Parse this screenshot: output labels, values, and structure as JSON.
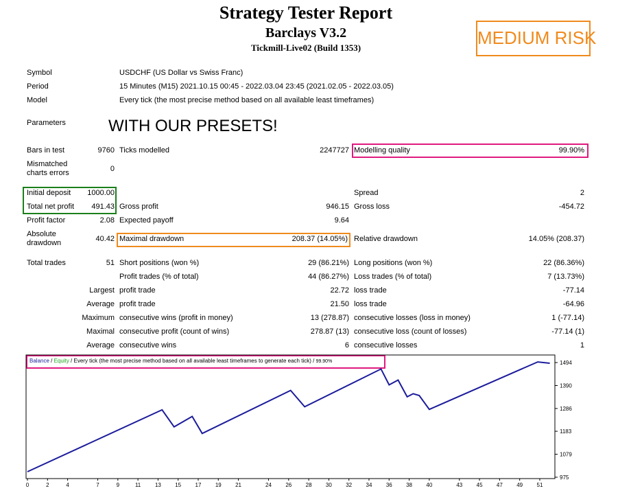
{
  "header": {
    "title": "Strategy Tester Report",
    "expert": "Barclays V3.2",
    "server": "Tickmill-Live02 (Build 1353)",
    "risk_label": "MEDIUM RISK",
    "presets_note": "WITH OUR PRESETS!"
  },
  "info": {
    "symbol_label": "Symbol",
    "symbol_value": "USDCHF (US Dollar vs Swiss Franc)",
    "period_label": "Period",
    "period_value": "15 Minutes (M15) 2021.10.15 00:45 - 2022.03.04 23:45 (2021.02.05 - 2022.03.05)",
    "model_label": "Model",
    "model_value": "Every tick (the most precise method based on all available least timeframes)",
    "parameters_label": "Parameters"
  },
  "stats": {
    "bars_label": "Bars in test",
    "bars_value": "9760",
    "ticks_label": "Ticks modelled",
    "ticks_value": "2247727",
    "quality_label": "Modelling quality",
    "quality_value": "99.90%",
    "mismatch_label1": "Mismatched",
    "mismatch_label2": "charts errors",
    "mismatch_value": "0",
    "deposit_label": "Initial deposit",
    "deposit_value": "1000.00",
    "spread_label": "Spread",
    "spread_value": "2",
    "netprofit_label": "Total net profit",
    "netprofit_value": "491.43",
    "grossprofit_label": "Gross profit",
    "grossprofit_value": "946.15",
    "grossloss_label": "Gross loss",
    "grossloss_value": "-454.72",
    "pf_label": "Profit factor",
    "pf_value": "2.08",
    "payoff_label": "Expected payoff",
    "payoff_value": "9.64",
    "absdd_label1": "Absolute",
    "absdd_label2": "drawdown",
    "absdd_value": "40.42",
    "maxdd_label": "Maximal drawdown",
    "maxdd_value": "208.37 (14.05%)",
    "reldd_label": "Relative drawdown",
    "reldd_value": "14.05% (208.37)",
    "trades_label": "Total trades",
    "trades_value": "51",
    "short_label": "Short positions (won %)",
    "short_value": "29 (86.21%)",
    "long_label": "Long positions (won %)",
    "long_value": "22 (86.36%)",
    "profit_trades_label": "Profit trades (% of total)",
    "profit_trades_value": "44 (86.27%)",
    "loss_trades_label": "Loss trades (% of total)",
    "loss_trades_value": "7 (13.73%)",
    "largest_label": "Largest",
    "largest_profit_label": "profit trade",
    "largest_profit_value": "22.72",
    "largest_loss_label": "loss trade",
    "largest_loss_value": "-77.14",
    "average_label": "Average",
    "average_profit_label": "profit trade",
    "average_profit_value": "21.50",
    "average_loss_label": "loss trade",
    "average_loss_value": "-64.96",
    "maximum_label": "Maximum",
    "max_wins_label": "consecutive wins (profit in money)",
    "max_wins_value": "13 (278.87)",
    "max_losses_label": "consecutive losses (loss in money)",
    "max_losses_value": "1 (-77.14)",
    "maximal_label": "Maximal",
    "maximal_profit_label": "consecutive profit (count of wins)",
    "maximal_profit_value": "278.87 (13)",
    "maximal_loss_label": "consecutive loss (count of losses)",
    "maximal_loss_value": "-77.14 (1)",
    "avg_consec_label": "Average",
    "avg_wins_label": "consecutive wins",
    "avg_wins_value": "6",
    "avg_losses_label": "consecutive losses",
    "avg_losses_value": "1"
  },
  "chart_legend": {
    "balance": "Balance",
    "sep1": " / ",
    "equity": "Equity",
    "sep2": " / Every tick (the most precise method based on all available least timeframes to generate each tick)",
    "sep3": " / ",
    "quality": "99.90%"
  },
  "colors": {
    "balance_line": "#1c1c9c",
    "equity_legend": "#1fa51f",
    "green_box": "#1a7f1a",
    "pink_box": "#e0197e",
    "orange_box": "#f08a1c"
  },
  "chart_data": {
    "type": "line",
    "series": [
      {
        "name": "Balance",
        "x": [
          0,
          13.4,
          14.6,
          16.4,
          17.4,
          26.2,
          27.6,
          35.2,
          36.0,
          36.9,
          37.8,
          38.4,
          39.0,
          40.0,
          50.8,
          52.0
        ],
        "values": [
          1000,
          1280,
          1203,
          1250,
          1173,
          1368,
          1294,
          1465,
          1393,
          1415,
          1339,
          1353,
          1345,
          1282,
          1497,
          1491
        ]
      }
    ],
    "x_ticks": [
      "0",
      "2",
      "4",
      "7",
      "9",
      "11",
      "13",
      "15",
      "17",
      "19",
      "21",
      "24",
      "26",
      "28",
      "30",
      "32",
      "34",
      "36",
      "38",
      "40",
      "43",
      "45",
      "47",
      "49",
      "51"
    ],
    "y_ticks": [
      "1494",
      "1390",
      "1286",
      "1183",
      "1079",
      "975"
    ],
    "xlim": [
      0,
      52.3
    ],
    "ylim": [
      975,
      1519
    ],
    "grid": false
  }
}
